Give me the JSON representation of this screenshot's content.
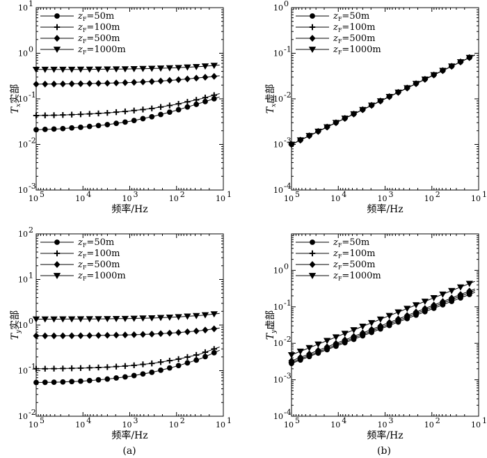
{
  "panel_labels": [
    "(a)",
    "(b)"
  ],
  "chart_data": [
    {
      "type": "line",
      "xlabel": "频率/Hz",
      "ylabel_main": "T",
      "ylabel_sub": "x",
      "ylabel_suffix": "实部",
      "x_scale": "log",
      "x_reversed": true,
      "xlim": [
        100000,
        10
      ],
      "xticks": [
        "10",
        "10",
        "10",
        "10",
        "10"
      ],
      "xticks_exp": [
        "5",
        "4",
        "3",
        "2",
        "1"
      ],
      "y_scale": "log",
      "ylim": [
        0.001,
        10
      ],
      "yticks": [
        "10",
        "10",
        "10",
        "10",
        "10"
      ],
      "yticks_exp": [
        "-3",
        "-2",
        "-1",
        "0",
        "1"
      ],
      "legend_location": "top-left",
      "series": [
        {
          "name_main": "z",
          "name_sub": "F",
          "name_rest": "=50m",
          "marker": "circle",
          "x": [
            100000,
            31623,
            10000,
            3162,
            1000,
            316,
            100,
            31.6,
            12
          ],
          "y": [
            0.021,
            0.022,
            0.024,
            0.027,
            0.032,
            0.041,
            0.056,
            0.08,
            0.11
          ]
        },
        {
          "name_main": "z",
          "name_sub": "F",
          "name_rest": "=100m",
          "marker": "plus",
          "x": [
            100000,
            31623,
            10000,
            3162,
            1000,
            316,
            100,
            31.6,
            12
          ],
          "y": [
            0.043,
            0.044,
            0.046,
            0.049,
            0.054,
            0.062,
            0.076,
            0.099,
            0.13
          ]
        },
        {
          "name_main": "z",
          "name_sub": "F",
          "name_rest": "=500m",
          "marker": "diamond",
          "x": [
            100000,
            31623,
            10000,
            3162,
            1000,
            316,
            100,
            31.6,
            12
          ],
          "y": [
            0.21,
            0.212,
            0.215,
            0.22,
            0.228,
            0.24,
            0.26,
            0.29,
            0.32
          ]
        },
        {
          "name_main": "z",
          "name_sub": "F",
          "name_rest": "=1000m",
          "marker": "triangle-down",
          "x": [
            100000,
            31623,
            10000,
            3162,
            1000,
            316,
            100,
            31.6,
            12
          ],
          "y": [
            0.44,
            0.441,
            0.443,
            0.447,
            0.453,
            0.463,
            0.48,
            0.51,
            0.55
          ]
        }
      ]
    },
    {
      "type": "line",
      "xlabel": "频率/Hz",
      "ylabel_main": "T",
      "ylabel_sub": "x",
      "ylabel_suffix": "虚部",
      "x_scale": "log",
      "x_reversed": true,
      "xlim": [
        100000,
        10
      ],
      "xticks": [
        "10",
        "10",
        "10",
        "10",
        "10"
      ],
      "xticks_exp": [
        "5",
        "4",
        "3",
        "2",
        "1"
      ],
      "y_scale": "log",
      "ylim": [
        0.0001,
        1
      ],
      "yticks": [
        "10",
        "10",
        "10",
        "10",
        "10"
      ],
      "yticks_exp": [
        "-4",
        "-3",
        "-2",
        "-1",
        "0"
      ],
      "legend_location": "top-left",
      "series": [
        {
          "name_main": "z",
          "name_sub": "F",
          "name_rest": "=50m",
          "marker": "circle",
          "x": [
            100000,
            12
          ],
          "y": [
            0.001,
            0.092
          ]
        },
        {
          "name_main": "z",
          "name_sub": "F",
          "name_rest": "=100m",
          "marker": "plus",
          "x": [
            100000,
            12
          ],
          "y": [
            0.001,
            0.092
          ]
        },
        {
          "name_main": "z",
          "name_sub": "F",
          "name_rest": "=500m",
          "marker": "diamond",
          "x": [
            100000,
            12
          ],
          "y": [
            0.001,
            0.092
          ]
        },
        {
          "name_main": "z",
          "name_sub": "F",
          "name_rest": "=1000m",
          "marker": "triangle-down",
          "x": [
            100000,
            12
          ],
          "y": [
            0.001,
            0.092
          ]
        }
      ]
    },
    {
      "type": "line",
      "xlabel": "频率/Hz",
      "ylabel_main": "T",
      "ylabel_sub": "y",
      "ylabel_suffix": "实部",
      "x_scale": "log",
      "x_reversed": true,
      "xlim": [
        100000,
        10
      ],
      "xticks": [
        "10",
        "10",
        "10",
        "10",
        "10"
      ],
      "xticks_exp": [
        "5",
        "4",
        "3",
        "2",
        "1"
      ],
      "y_scale": "log",
      "ylim": [
        0.01,
        100
      ],
      "yticks": [
        "10",
        "10",
        "10",
        "10",
        "10"
      ],
      "yticks_exp": [
        "-2",
        "-1",
        "0",
        "1",
        "2"
      ],
      "legend_location": "top-left",
      "series": [
        {
          "name_main": "z",
          "name_sub": "F",
          "name_rest": "=50m",
          "marker": "circle",
          "x": [
            100000,
            31623,
            10000,
            3162,
            1000,
            316,
            100,
            31.6,
            12
          ],
          "y": [
            0.055,
            0.056,
            0.059,
            0.065,
            0.075,
            0.093,
            0.125,
            0.18,
            0.28
          ]
        },
        {
          "name_main": "z",
          "name_sub": "F",
          "name_rest": "=100m",
          "marker": "plus",
          "x": [
            100000,
            31623,
            10000,
            3162,
            1000,
            316,
            100,
            31.6,
            12
          ],
          "y": [
            0.11,
            0.111,
            0.114,
            0.119,
            0.128,
            0.145,
            0.175,
            0.23,
            0.33
          ]
        },
        {
          "name_main": "z",
          "name_sub": "F",
          "name_rest": "=500m",
          "marker": "diamond",
          "x": [
            100000,
            31623,
            10000,
            3162,
            1000,
            316,
            100,
            31.6,
            12
          ],
          "y": [
            0.58,
            0.58,
            0.585,
            0.595,
            0.61,
            0.635,
            0.68,
            0.75,
            0.86
          ]
        },
        {
          "name_main": "z",
          "name_sub": "F",
          "name_rest": "=1000m",
          "marker": "triangle-down",
          "x": [
            100000,
            31623,
            10000,
            3162,
            1000,
            316,
            100,
            31.6,
            12
          ],
          "y": [
            1.35,
            1.35,
            1.36,
            1.37,
            1.39,
            1.43,
            1.5,
            1.62,
            1.8
          ]
        }
      ]
    },
    {
      "type": "line",
      "xlabel": "频率/Hz",
      "ylabel_main": "T",
      "ylabel_sub": "y",
      "ylabel_suffix": "虚部",
      "x_scale": "log",
      "x_reversed": true,
      "xlim": [
        100000,
        10
      ],
      "xticks": [
        "10",
        "10",
        "10",
        "10",
        "10"
      ],
      "xticks_exp": [
        "5",
        "4",
        "3",
        "2",
        "1"
      ],
      "y_scale": "log",
      "ylim": [
        0.0001,
        10
      ],
      "yticks": [
        "10",
        "10",
        "10",
        "10",
        "10"
      ],
      "yticks_exp": [
        "-4",
        "-3",
        "-2",
        "-1",
        "0"
      ],
      "yticks_values": [
        0.0001,
        0.001,
        0.01,
        0.1,
        1
      ],
      "legend_location": "top-left",
      "series": [
        {
          "name_main": "z",
          "name_sub": "F",
          "name_rest": "=50m",
          "marker": "circle",
          "x": [
            100000,
            12
          ],
          "y": [
            0.0028,
            0.25
          ]
        },
        {
          "name_main": "z",
          "name_sub": "F",
          "name_rest": "=100m",
          "marker": "plus",
          "x": [
            100000,
            12
          ],
          "y": [
            0.003,
            0.28
          ]
        },
        {
          "name_main": "z",
          "name_sub": "F",
          "name_rest": "=500m",
          "marker": "diamond",
          "x": [
            100000,
            12
          ],
          "y": [
            0.0033,
            0.31
          ]
        },
        {
          "name_main": "z",
          "name_sub": "F",
          "name_rest": "=1000m",
          "marker": "triangle-down",
          "x": [
            100000,
            12
          ],
          "y": [
            0.0048,
            0.5
          ]
        }
      ]
    }
  ]
}
